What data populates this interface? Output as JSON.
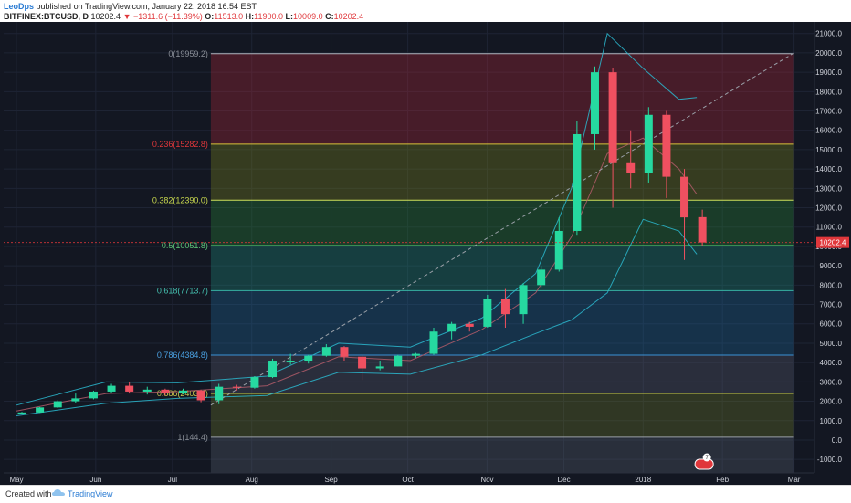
{
  "header": {
    "author": "LeoDps",
    "published_text": "published on TradingView.com, January 22, 2018 16:54 EST",
    "symbol": "BITFINEX:BTCUSD, D",
    "last": "10202.4",
    "change": "−1311.6 (−11.39%)",
    "open_label": "O:",
    "open": "11513.0",
    "high_label": "H:",
    "high": "11900.0",
    "low_label": "L:",
    "low": "10009.0",
    "close_label": "C:",
    "close": "10202.4"
  },
  "footer": {
    "created_with": "Created with",
    "brand": "TradingView"
  },
  "colors": {
    "background": "#131722",
    "up": "#26d9a0",
    "down": "#ef5060",
    "bollinger": "#2bb8cf",
    "trendline": "#9aa0a8",
    "last_price_badge": "#e0373b"
  },
  "chart_data": {
    "type": "candlestick",
    "y_axis_ticks": [
      -1000,
      0,
      1000,
      2000,
      3000,
      4000,
      5000,
      6000,
      7000,
      8000,
      9000,
      10000,
      11000,
      12000,
      13000,
      14000,
      15000,
      16000,
      17000,
      18000,
      19000,
      20000,
      21000
    ],
    "ylim": [
      -1700,
      21600
    ],
    "x_axis_ticks": [
      "May",
      "Jun",
      "Jul",
      "Aug",
      "Sep",
      "Oct",
      "Nov",
      "Dec",
      "2018",
      "Feb",
      "Mar"
    ],
    "last_price_label": "10202.4",
    "event_badge": "7",
    "fibonacci": {
      "levels": [
        {
          "label": "0(19959.2)",
          "price": 19959.2,
          "line_color": "#b2b5be",
          "band_color": "#b3263b",
          "label_color": "#8a8f98"
        },
        {
          "label": "0.236(15282.8)",
          "price": 15282.8,
          "line_color": "#d8c23a",
          "band_color": "#7f8a1f",
          "label_color": "#e0373b"
        },
        {
          "label": "0.382(12390.0)",
          "price": 12390.0,
          "line_color": "#cfe05a",
          "band_color": "#2a8a3a",
          "label_color": "#c9d94e"
        },
        {
          "label": "0.5(10051.8)",
          "price": 10051.8,
          "line_color": "#4cc06a",
          "band_color": "#1f8f7e",
          "label_color": "#5cc878"
        },
        {
          "label": "0.618(7713.7)",
          "price": 7713.7,
          "line_color": "#37b3a4",
          "band_color": "#1e6a9e",
          "label_color": "#45c2b1"
        },
        {
          "label": "0.786(4384.8)",
          "price": 4384.8,
          "line_color": "#3b93d6",
          "band_color": "#5a5f74",
          "label_color": "#4aa0e0"
        },
        {
          "label": "0.886(2403.4)",
          "price": 2403.4,
          "line_color": "#c9c94e",
          "band_color": "#6e7a2a",
          "label_color": "#c9c94e"
        },
        {
          "label": "1(144.4)",
          "price": 144.4,
          "line_color": "#9aa0a8",
          "band_color": "#596070",
          "label_color": "#8a8f98"
        }
      ]
    },
    "trendline": {
      "from": {
        "date": "2017-07-16",
        "price": 1800
      },
      "to": {
        "date": "2018-03-01",
        "price": 20000
      }
    },
    "candles": [
      {
        "date": "2017-05-01",
        "open": 1350,
        "high": 1450,
        "low": 1320,
        "close": 1420
      },
      {
        "date": "2017-05-08",
        "open": 1420,
        "high": 1700,
        "low": 1400,
        "close": 1680
      },
      {
        "date": "2017-05-15",
        "open": 1680,
        "high": 2050,
        "low": 1650,
        "close": 2000
      },
      {
        "date": "2017-05-22",
        "open": 2000,
        "high": 2400,
        "low": 1900,
        "close": 2150
      },
      {
        "date": "2017-05-29",
        "open": 2150,
        "high": 2550,
        "low": 2100,
        "close": 2500
      },
      {
        "date": "2017-06-05",
        "open": 2500,
        "high": 2900,
        "low": 2400,
        "close": 2800
      },
      {
        "date": "2017-06-12",
        "open": 2800,
        "high": 3000,
        "low": 2400,
        "close": 2500
      },
      {
        "date": "2017-06-19",
        "open": 2500,
        "high": 2750,
        "low": 2350,
        "close": 2600
      },
      {
        "date": "2017-06-26",
        "open": 2600,
        "high": 2650,
        "low": 2300,
        "close": 2450
      },
      {
        "date": "2017-07-03",
        "open": 2450,
        "high": 2650,
        "low": 2350,
        "close": 2550
      },
      {
        "date": "2017-07-10",
        "open": 2550,
        "high": 2600,
        "low": 1950,
        "close": 2050
      },
      {
        "date": "2017-07-17",
        "open": 2050,
        "high": 2900,
        "low": 1850,
        "close": 2750
      },
      {
        "date": "2017-07-24",
        "open": 2750,
        "high": 2850,
        "low": 2550,
        "close": 2700
      },
      {
        "date": "2017-07-31",
        "open": 2700,
        "high": 3300,
        "low": 2650,
        "close": 3250
      },
      {
        "date": "2017-08-07",
        "open": 3250,
        "high": 4200,
        "low": 3200,
        "close": 4100
      },
      {
        "date": "2017-08-14",
        "open": 4100,
        "high": 4450,
        "low": 3900,
        "close": 4100
      },
      {
        "date": "2017-08-21",
        "open": 4100,
        "high": 4400,
        "low": 3950,
        "close": 4350
      },
      {
        "date": "2017-08-28",
        "open": 4350,
        "high": 4950,
        "low": 4300,
        "close": 4800
      },
      {
        "date": "2017-09-04",
        "open": 4800,
        "high": 4850,
        "low": 4100,
        "close": 4300
      },
      {
        "date": "2017-09-11",
        "open": 4300,
        "high": 4400,
        "low": 3100,
        "close": 3700
      },
      {
        "date": "2017-09-18",
        "open": 3700,
        "high": 4100,
        "low": 3600,
        "close": 3800
      },
      {
        "date": "2017-09-25",
        "open": 3800,
        "high": 4400,
        "low": 3800,
        "close": 4350
      },
      {
        "date": "2017-10-02",
        "open": 4350,
        "high": 4500,
        "low": 4250,
        "close": 4450
      },
      {
        "date": "2017-10-09",
        "open": 4450,
        "high": 5800,
        "low": 4400,
        "close": 5600
      },
      {
        "date": "2017-10-16",
        "open": 5600,
        "high": 6100,
        "low": 5200,
        "close": 6000
      },
      {
        "date": "2017-10-23",
        "open": 6000,
        "high": 6100,
        "low": 5600,
        "close": 5850
      },
      {
        "date": "2017-10-30",
        "open": 5850,
        "high": 7500,
        "low": 5800,
        "close": 7300
      },
      {
        "date": "2017-11-06",
        "open": 7300,
        "high": 7800,
        "low": 5800,
        "close": 6500
      },
      {
        "date": "2017-11-13",
        "open": 6500,
        "high": 8100,
        "low": 6000,
        "close": 8000
      },
      {
        "date": "2017-11-20",
        "open": 8000,
        "high": 9000,
        "low": 7900,
        "close": 8800
      },
      {
        "date": "2017-11-27",
        "open": 8800,
        "high": 11500,
        "low": 8700,
        "close": 10800
      },
      {
        "date": "2017-12-04",
        "open": 10800,
        "high": 16500,
        "low": 10600,
        "close": 15800
      },
      {
        "date": "2017-12-11",
        "open": 15800,
        "high": 19300,
        "low": 15000,
        "close": 19000
      },
      {
        "date": "2017-12-18",
        "open": 19000,
        "high": 19200,
        "low": 12000,
        "close": 14300
      },
      {
        "date": "2017-12-25",
        "open": 14300,
        "high": 16000,
        "low": 13000,
        "close": 13800
      },
      {
        "date": "2018-01-01",
        "open": 13800,
        "high": 17200,
        "low": 13300,
        "close": 16800
      },
      {
        "date": "2018-01-08",
        "open": 16800,
        "high": 17000,
        "low": 12500,
        "close": 13600
      },
      {
        "date": "2018-01-15",
        "open": 13600,
        "high": 14000,
        "low": 9300,
        "close": 11500
      },
      {
        "date": "2018-01-22",
        "open": 11513,
        "high": 11900,
        "low": 10009,
        "close": 10202.4
      }
    ],
    "bollinger": {
      "upper": [
        {
          "date": "2017-05-01",
          "price": 1800
        },
        {
          "date": "2017-06-05",
          "price": 3000
        },
        {
          "date": "2017-07-03",
          "price": 2950
        },
        {
          "date": "2017-08-07",
          "price": 3300
        },
        {
          "date": "2017-09-04",
          "price": 5000
        },
        {
          "date": "2017-10-02",
          "price": 4800
        },
        {
          "date": "2017-10-30",
          "price": 6300
        },
        {
          "date": "2017-11-20",
          "price": 8600
        },
        {
          "date": "2017-12-04",
          "price": 13000
        },
        {
          "date": "2017-12-18",
          "price": 21000
        },
        {
          "date": "2018-01-01",
          "price": 19200
        },
        {
          "date": "2018-01-15",
          "price": 17600
        },
        {
          "date": "2018-01-22",
          "price": 17700
        }
      ],
      "middle": [
        {
          "date": "2017-05-01",
          "price": 1500
        },
        {
          "date": "2017-06-05",
          "price": 2400
        },
        {
          "date": "2017-07-03",
          "price": 2500
        },
        {
          "date": "2017-08-07",
          "price": 2800
        },
        {
          "date": "2017-09-04",
          "price": 4300
        },
        {
          "date": "2017-10-02",
          "price": 4100
        },
        {
          "date": "2017-10-30",
          "price": 5700
        },
        {
          "date": "2017-11-20",
          "price": 7600
        },
        {
          "date": "2017-12-04",
          "price": 10500
        },
        {
          "date": "2017-12-18",
          "price": 14800
        },
        {
          "date": "2018-01-01",
          "price": 15600
        },
        {
          "date": "2018-01-15",
          "price": 14000
        },
        {
          "date": "2018-01-22",
          "price": 12700
        }
      ],
      "lower": [
        {
          "date": "2017-05-01",
          "price": 1250
        },
        {
          "date": "2017-06-05",
          "price": 1900
        },
        {
          "date": "2017-07-03",
          "price": 2150
        },
        {
          "date": "2017-08-07",
          "price": 2300
        },
        {
          "date": "2017-09-04",
          "price": 3500
        },
        {
          "date": "2017-10-02",
          "price": 3400
        },
        {
          "date": "2017-10-30",
          "price": 4400
        },
        {
          "date": "2017-11-20",
          "price": 5500
        },
        {
          "date": "2017-12-04",
          "price": 6200
        },
        {
          "date": "2017-12-18",
          "price": 7600
        },
        {
          "date": "2018-01-01",
          "price": 11400
        },
        {
          "date": "2018-01-15",
          "price": 10800
        },
        {
          "date": "2018-01-22",
          "price": 9600
        }
      ]
    }
  }
}
